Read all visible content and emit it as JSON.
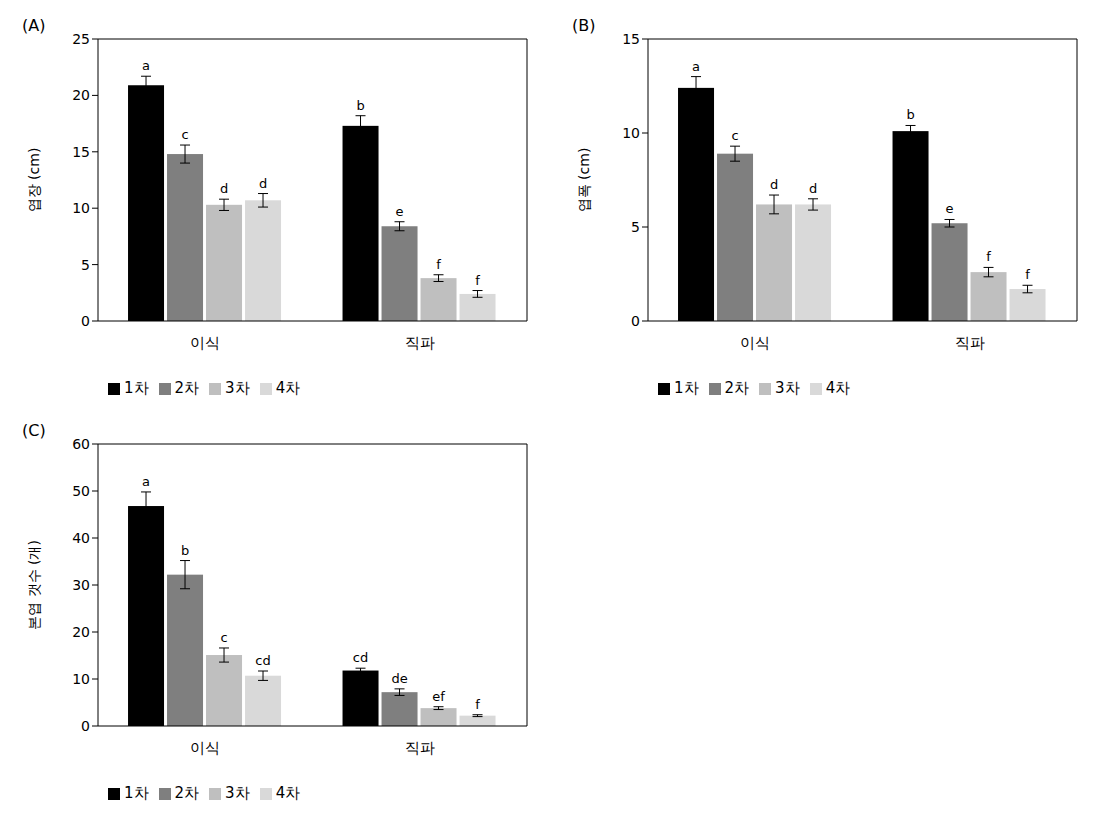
{
  "chart_data": [
    {
      "type": "bar",
      "title": "(A)",
      "y_label": "엽장 (cm)",
      "categories": [
        "이식",
        "직파"
      ],
      "ylim": [
        0,
        25
      ],
      "yticks": [
        0,
        5,
        10,
        15,
        20,
        25
      ],
      "legend": "bottom left",
      "series": [
        {
          "name": "1차",
          "color": "#000000",
          "values": [
            20.9,
            17.3
          ],
          "errors": [
            0.8,
            0.9
          ],
          "letters": [
            "a",
            "b"
          ]
        },
        {
          "name": "2차",
          "color": "#7f7f7f",
          "values": [
            14.8,
            8.4
          ],
          "errors": [
            0.8,
            0.4
          ],
          "letters": [
            "c",
            "e"
          ]
        },
        {
          "name": "3차",
          "color": "#bfbfbf",
          "values": [
            10.3,
            3.8
          ],
          "errors": [
            0.5,
            0.3
          ],
          "letters": [
            "d",
            "f"
          ]
        },
        {
          "name": "4차",
          "color": "#d9d9d9",
          "values": [
            10.7,
            2.4
          ],
          "errors": [
            0.6,
            0.3
          ],
          "letters": [
            "d",
            "f"
          ]
        }
      ]
    },
    {
      "type": "bar",
      "title": "(B)",
      "y_label": "엽폭 (cm)",
      "categories": [
        "이식",
        "직파"
      ],
      "ylim": [
        0,
        15
      ],
      "yticks": [
        0,
        5,
        10,
        15
      ],
      "legend": "bottom left",
      "series": [
        {
          "name": "1차",
          "color": "#000000",
          "values": [
            12.4,
            10.1
          ],
          "errors": [
            0.6,
            0.3
          ],
          "letters": [
            "a",
            "b"
          ]
        },
        {
          "name": "2차",
          "color": "#7f7f7f",
          "values": [
            8.9,
            5.2
          ],
          "errors": [
            0.4,
            0.2
          ],
          "letters": [
            "c",
            "e"
          ]
        },
        {
          "name": "3차",
          "color": "#bfbfbf",
          "values": [
            6.2,
            2.6
          ],
          "errors": [
            0.5,
            0.25
          ],
          "letters": [
            "d",
            "f"
          ]
        },
        {
          "name": "4차",
          "color": "#d9d9d9",
          "values": [
            6.2,
            1.7
          ],
          "errors": [
            0.3,
            0.2
          ],
          "letters": [
            "d",
            "f"
          ]
        }
      ]
    },
    {
      "type": "bar",
      "title": "(C)",
      "y_label": "본엽 갯수 (개)",
      "categories": [
        "이식",
        "직파"
      ],
      "ylim": [
        0,
        60
      ],
      "yticks": [
        0,
        10,
        20,
        30,
        40,
        50,
        60
      ],
      "legend": "bottom left",
      "series": [
        {
          "name": "1차",
          "color": "#000000",
          "values": [
            46.8,
            11.8
          ],
          "errors": [
            3.0,
            0.5
          ],
          "letters": [
            "a",
            "cd"
          ]
        },
        {
          "name": "2차",
          "color": "#7f7f7f",
          "values": [
            32.2,
            7.2
          ],
          "errors": [
            3.0,
            0.7
          ],
          "letters": [
            "b",
            "de"
          ]
        },
        {
          "name": "3차",
          "color": "#bfbfbf",
          "values": [
            15.1,
            3.8
          ],
          "errors": [
            1.5,
            0.3
          ],
          "letters": [
            "c",
            "ef"
          ]
        },
        {
          "name": "4차",
          "color": "#d9d9d9",
          "values": [
            10.7,
            2.2
          ],
          "errors": [
            1.0,
            0.2
          ],
          "letters": [
            "cd",
            "f"
          ]
        }
      ]
    }
  ]
}
